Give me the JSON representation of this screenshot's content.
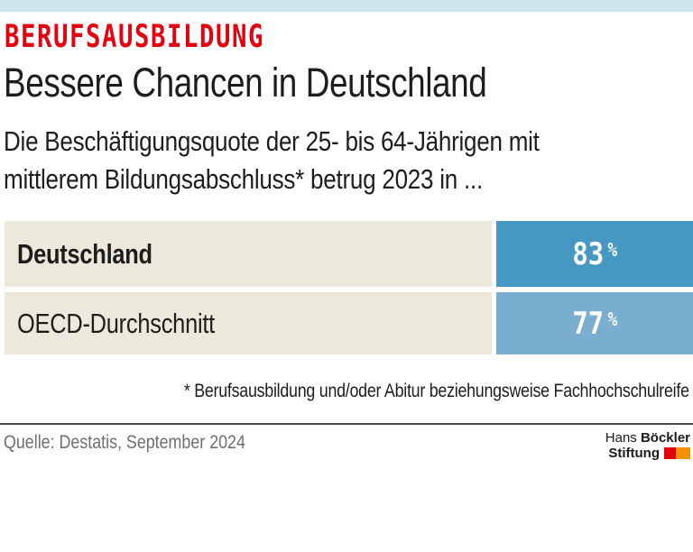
{
  "header": {
    "kicker": "BERUFSAUSBILDUNG",
    "title": "Bessere Chancen in Deutschland",
    "subtitle_line1": "Die Beschäftigungsquote der 25- bis 64-Jährigen mit",
    "subtitle_line2": "mittlerem Bildungsabschluss* betrug 2023 in ..."
  },
  "bars": [
    {
      "label": "Deutschland",
      "value": "83",
      "unit": "%"
    },
    {
      "label": "OECD-Durchschnitt",
      "value": "77",
      "unit": "%"
    }
  ],
  "footnote": "* Berufsausbildung und/oder Abitur beziehungsweise Fachhochschulreife",
  "source": "Quelle: Destatis, September 2024",
  "logo": {
    "line1_regular": "Hans",
    "line1_bold": "Böckler",
    "line2_bold": "Stiftung"
  },
  "colors": {
    "accent_red": "#e3000f",
    "accent_orange": "#f39200",
    "top_strip_blue": "#cfe5ec",
    "bar_dark_blue": "#4697c1",
    "bar_light_blue": "#7aaed1",
    "label_beige": "#ece9dc",
    "text_dark": "#1d1d1b",
    "source_gray": "#6f6e6e"
  },
  "chart_data": {
    "type": "bar",
    "orientation": "horizontal",
    "title": "Bessere Chancen in Deutschland",
    "kicker": "BERUFSAUSBILDUNG",
    "subtitle": "Die Beschäftigungsquote der 25- bis 64-Jährigen mit mittlerem Bildungsabschluss* betrug 2023 in ...",
    "categories": [
      "Deutschland",
      "OECD-Durchschnitt"
    ],
    "values": [
      83,
      77
    ],
    "unit": "%",
    "data_labels": [
      "83 %",
      "77 %"
    ],
    "bar_colors": [
      "#4697c1",
      "#7aaed1"
    ],
    "footnote": "* Berufsausbildung und/oder Abitur beziehungsweise Fachhochschulreife",
    "source": "Quelle: Destatis, September 2024",
    "legend": "none",
    "grid": false
  }
}
